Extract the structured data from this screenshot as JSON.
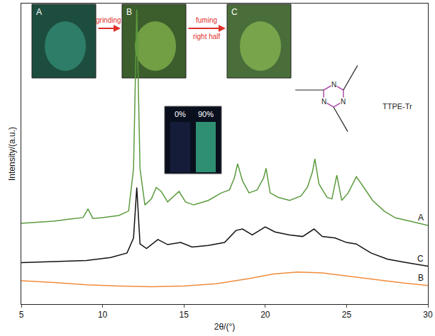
{
  "chart_data": {
    "type": "line",
    "x_label": "2θ/(°)",
    "y_label": "Intensity/(a.u.)",
    "xlim": [
      5,
      30
    ],
    "xticks": [
      5,
      10,
      15,
      20,
      25,
      30
    ],
    "ylim": [
      0,
      100
    ],
    "yticks": [],
    "tick_labels": "x",
    "grid": false,
    "series": [
      {
        "name": "A",
        "color": "#5b9b3e",
        "x": [
          5,
          6,
          7,
          8,
          8.8,
          9.1,
          9.4,
          10,
          11,
          11.6,
          11.9,
          12.1,
          12.3,
          12.6,
          13,
          13.3,
          13.6,
          14,
          14.4,
          14.7,
          15.1,
          15.6,
          16.5,
          17.3,
          17.8,
          18.1,
          18.3,
          18.6,
          19,
          19.5,
          19.9,
          20.05,
          20.3,
          20.8,
          21.5,
          22.2,
          22.6,
          22.9,
          23.05,
          23.3,
          23.8,
          24.1,
          24.4,
          24.7,
          25.1,
          25.6,
          26.1,
          26.6,
          27.3,
          28,
          29,
          30
        ],
        "values": [
          26.9,
          27.3,
          27.6,
          28.3,
          28.8,
          31.7,
          28.5,
          28.8,
          29.5,
          31,
          45,
          98,
          45,
          33,
          35,
          38.8,
          37.5,
          34,
          36,
          37.5,
          34,
          33,
          34.5,
          37,
          38,
          42,
          46.7,
          41,
          37,
          38,
          42,
          45.2,
          37,
          35.5,
          34.5,
          36,
          39,
          44,
          48.3,
          40,
          35.5,
          35,
          42.9,
          34.5,
          37,
          42.4,
          38.5,
          34.5,
          31,
          28.7,
          27.5,
          26.2
        ]
      },
      {
        "name": "C",
        "color": "#111111",
        "x": [
          5,
          7,
          9,
          10.5,
          11.5,
          11.9,
          12.1,
          12.3,
          12.7,
          13.4,
          14,
          14.8,
          15.5,
          16.5,
          17.5,
          18.2,
          18.6,
          19.2,
          20,
          20.6,
          21.5,
          22.3,
          23,
          23.5,
          24.3,
          25,
          25.6,
          26.5,
          27.5,
          28.5,
          30
        ],
        "values": [
          13.8,
          14.2,
          14.5,
          15.5,
          17,
          22,
          38.8,
          20,
          18.5,
          21.5,
          19.8,
          20.5,
          19,
          19.5,
          20.5,
          24.5,
          25,
          23,
          25.7,
          24,
          23,
          22.5,
          25,
          22.5,
          22,
          20.5,
          20,
          17,
          15,
          14,
          12.6
        ]
      },
      {
        "name": "B",
        "color": "#f08c3c",
        "x": [
          5,
          7,
          9,
          11,
          13,
          15,
          17,
          19,
          20.5,
          22,
          23.5,
          25,
          27,
          28.5,
          30
        ],
        "values": [
          7.8,
          7.2,
          6.4,
          6,
          5.8,
          6,
          6.8,
          8.5,
          10,
          10.7,
          10.4,
          9.3,
          8,
          7,
          6.2
        ]
      }
    ],
    "photos": [
      "A",
      "B",
      "C"
    ],
    "annotations": [
      "grinding",
      "fuming",
      "right half"
    ],
    "vial_labels": [
      "0%",
      "90%"
    ],
    "structure": {
      "name": "TTPE-Tr",
      "atoms": [
        "N",
        "N",
        "N"
      ]
    }
  }
}
